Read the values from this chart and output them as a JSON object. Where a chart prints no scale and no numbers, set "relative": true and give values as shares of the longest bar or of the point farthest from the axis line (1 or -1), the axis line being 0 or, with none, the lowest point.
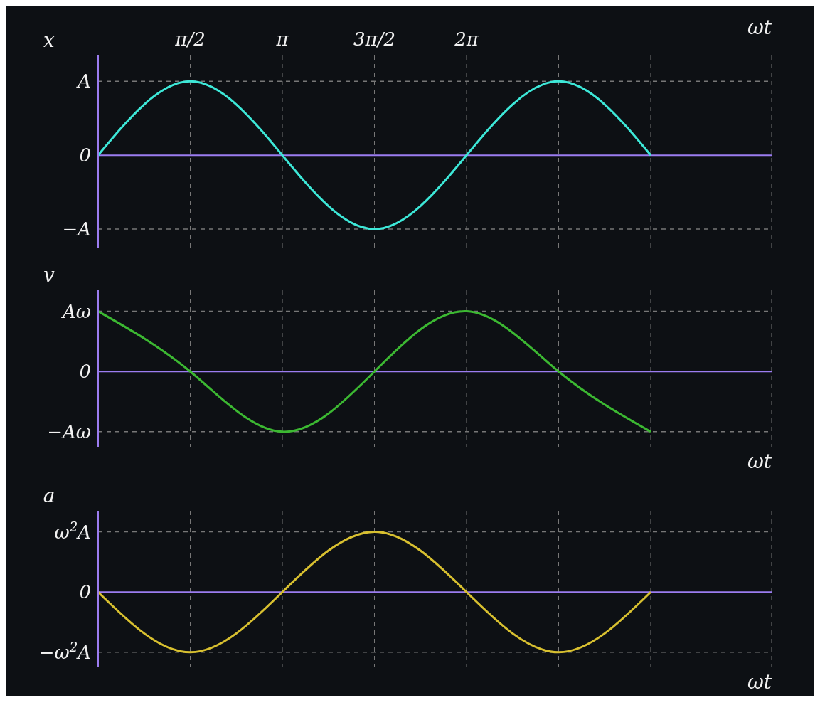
{
  "chart_data": [
    {
      "type": "line",
      "ylabel": "x",
      "xlabel": "ωt",
      "relative": true,
      "categories": [
        null,
        "π/2",
        "π",
        "3π/2",
        "2π",
        null,
        null
      ],
      "series": [
        {
          "color": "#3de8d8",
          "values": [
            0,
            1,
            0,
            -1,
            0,
            1,
            0
          ]
        }
      ],
      "ref_lines": [
        {
          "axis": "y",
          "value": 1,
          "label": "A",
          "line_style": "dashed",
          "color": "#777777"
        },
        {
          "axis": "y",
          "value": 0,
          "label": "0",
          "line_style": "solid",
          "color": "#9b7cf0"
        },
        {
          "axis": "y",
          "value": -1,
          "label": "−A",
          "line_style": "dashed",
          "color": "#777777"
        }
      ],
      "grid": "x"
    },
    {
      "type": "line",
      "ylabel": "v",
      "xlabel": "ωt",
      "relative": true,
      "categories": [
        null,
        null,
        null,
        null,
        null,
        null,
        null
      ],
      "series": [
        {
          "color": "#3cb832",
          "values": [
            1,
            0,
            -1,
            0,
            1,
            0,
            -1
          ]
        }
      ],
      "ref_lines": [
        {
          "axis": "y",
          "value": 1,
          "label": "Aω",
          "line_style": "dashed",
          "color": "#777777"
        },
        {
          "axis": "y",
          "value": 0,
          "label": "0",
          "line_style": "solid",
          "color": "#9b7cf0"
        },
        {
          "axis": "y",
          "value": -1,
          "label": "−Aω",
          "line_style": "dashed",
          "color": "#777777"
        }
      ],
      "grid": "x"
    },
    {
      "type": "line",
      "ylabel": "a",
      "xlabel": "ωt",
      "relative": true,
      "categories": [
        null,
        null,
        null,
        null,
        null,
        null,
        null
      ],
      "series": [
        {
          "color": "#d8c030",
          "values": [
            0,
            -1,
            0,
            1,
            0,
            -1,
            0
          ]
        }
      ],
      "ref_lines": [
        {
          "axis": "y",
          "value": 1,
          "label": "ω$^{2}$A",
          "line_style": "dashed",
          "color": "#777777"
        },
        {
          "axis": "y",
          "value": 0,
          "label": "0",
          "line_style": "solid",
          "color": "#9b7cf0"
        },
        {
          "axis": "y",
          "value": -1,
          "label": "−ω$^{2}$A",
          "line_style": "dashed",
          "color": "#777777"
        }
      ],
      "grid": "x"
    }
  ]
}
